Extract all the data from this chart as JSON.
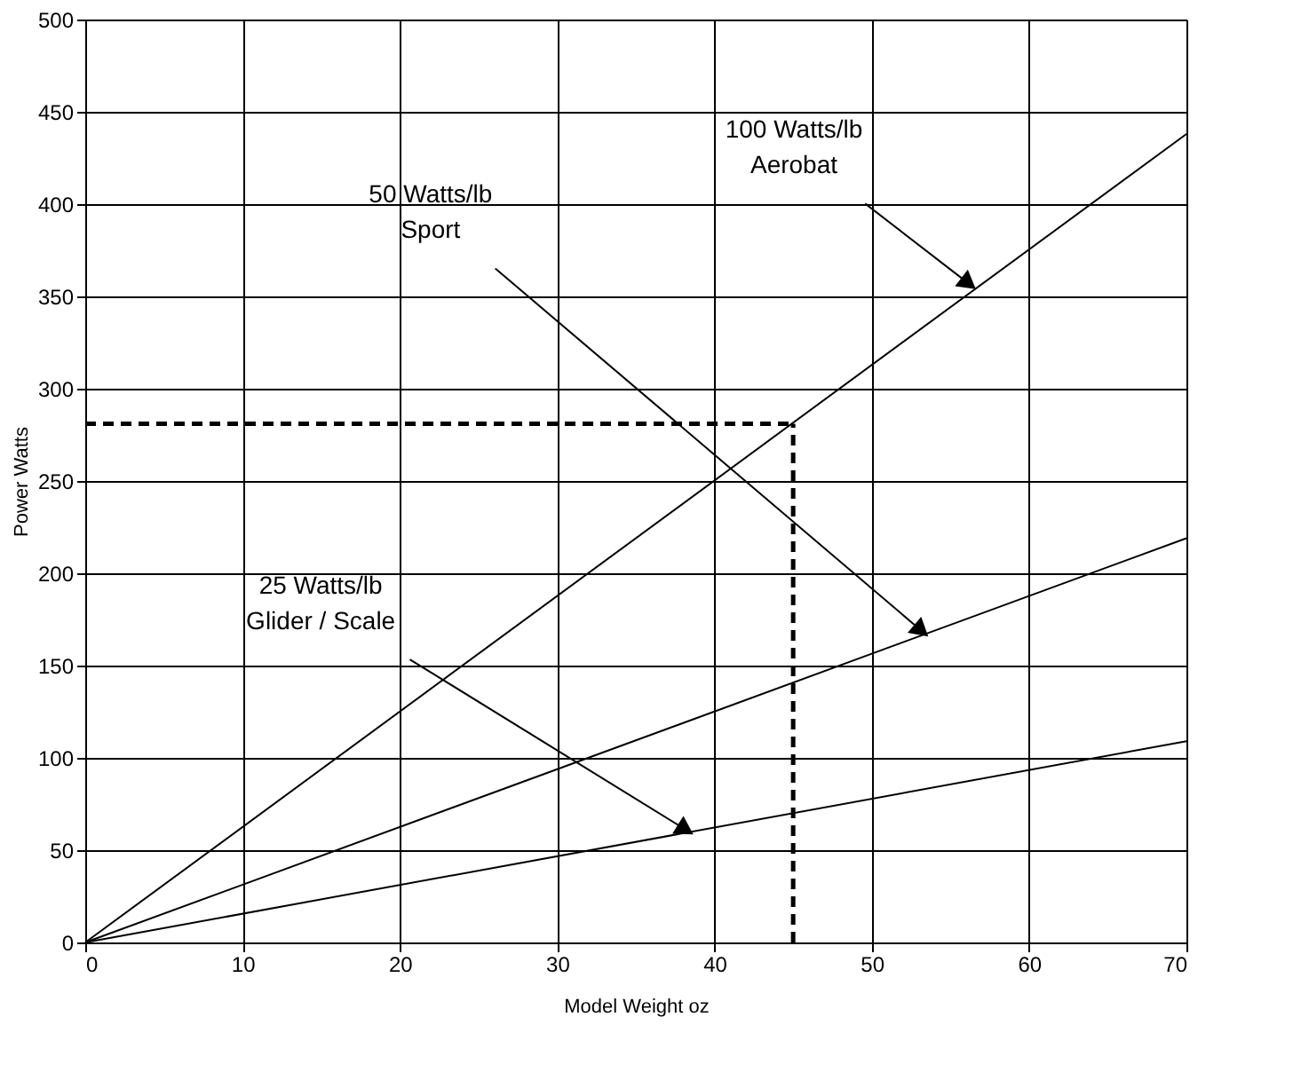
{
  "chart_data": {
    "type": "line",
    "xlabel": "Model Weight oz",
    "ylabel": "Power Watts",
    "x": [
      0,
      70
    ],
    "series": [
      {
        "color": "#000000",
        "values": [
          0,
          438
        ]
      },
      {
        "color": "#000000",
        "values": [
          0,
          219
        ]
      },
      {
        "color": "#000000",
        "values": [
          0,
          109
        ]
      }
    ],
    "xlim": [
      0,
      70
    ],
    "xticks": [
      0,
      10,
      20,
      30,
      40,
      50,
      60,
      70
    ],
    "ylim": [
      0,
      500
    ],
    "yticks": [
      0,
      50,
      100,
      150,
      200,
      250,
      300,
      350,
      400,
      450,
      500
    ],
    "grid": true,
    "marker": "none",
    "line_style": "solid",
    "ref_lines": [
      {
        "axis": "x",
        "value": 45,
        "label": null,
        "color": "#000000",
        "line_style": "dashed"
      },
      {
        "axis": "y",
        "value": 281,
        "label": null,
        "color": "#000000",
        "line_style": "dashed"
      }
    ],
    "annotations": [
      {
        "text": "100 Watts/lb\nAerobat",
        "x": 56,
        "y": 358
      },
      {
        "text": "50 Watts/lb\nSport",
        "x": 53,
        "y": 170
      },
      {
        "text": "25 Watts/lb\nGlider / Scale",
        "x": 38,
        "y": 62
      }
    ]
  }
}
